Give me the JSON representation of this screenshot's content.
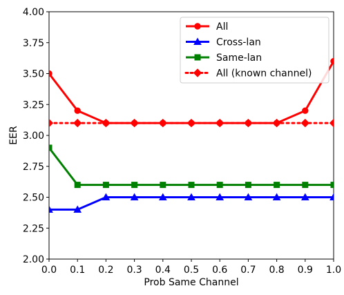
{
  "chart_data": {
    "type": "line",
    "title": "",
    "xlabel": "Prob Same Channel",
    "ylabel": "EER",
    "xlim": [
      0.0,
      1.0
    ],
    "ylim": [
      2.0,
      4.0
    ],
    "xticks": [
      "0.0",
      "0.1",
      "0.2",
      "0.3",
      "0.4",
      "0.5",
      "0.6",
      "0.7",
      "0.8",
      "0.9",
      "1.0"
    ],
    "yticks": [
      "2.00",
      "2.25",
      "2.50",
      "2.75",
      "3.00",
      "3.25",
      "3.50",
      "3.75",
      "4.00"
    ],
    "grid": false,
    "legend_position": "top-right",
    "x": [
      0.0,
      0.1,
      0.2,
      0.3,
      0.4,
      0.5,
      0.6,
      0.7,
      0.8,
      0.9,
      1.0
    ],
    "series": [
      {
        "name": "All",
        "color": "#ff0000",
        "marker": "circle",
        "line_style": "solid",
        "values": [
          3.5,
          3.2,
          3.1,
          3.1,
          3.1,
          3.1,
          3.1,
          3.1,
          3.1,
          3.2,
          3.6
        ]
      },
      {
        "name": "Cross-lan",
        "color": "#0000ff",
        "marker": "triangle",
        "line_style": "solid",
        "values": [
          2.4,
          2.4,
          2.5,
          2.5,
          2.5,
          2.5,
          2.5,
          2.5,
          2.5,
          2.5,
          2.5
        ]
      },
      {
        "name": "Same-lan",
        "color": "#008000",
        "marker": "square",
        "line_style": "solid",
        "values": [
          2.9,
          2.6,
          2.6,
          2.6,
          2.6,
          2.6,
          2.6,
          2.6,
          2.6,
          2.6,
          2.6
        ]
      },
      {
        "name": "All (known channel)",
        "color": "#ff0000",
        "marker": "diamond",
        "line_style": "dotted",
        "values": [
          3.1,
          3.1,
          3.1,
          3.1,
          3.1,
          3.1,
          3.1,
          3.1,
          3.1,
          3.1,
          3.1
        ]
      }
    ]
  }
}
